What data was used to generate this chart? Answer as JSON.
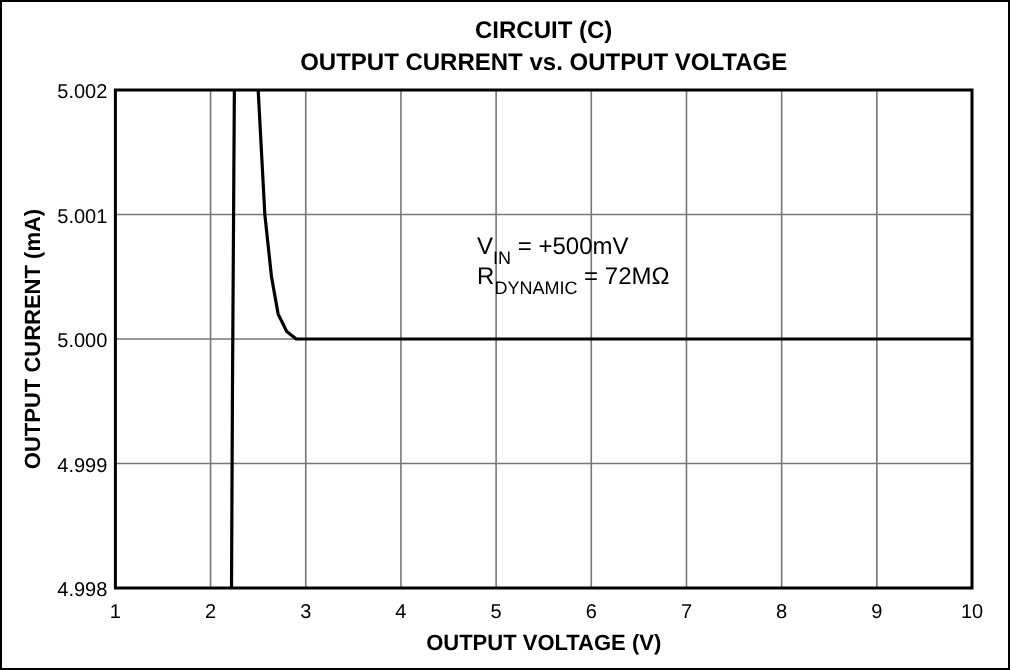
{
  "chart_data": {
    "type": "line",
    "title": "CIRCUIT (C)",
    "subtitle": "OUTPUT CURRENT vs. OUTPUT VOLTAGE",
    "xlabel": "OUTPUT VOLTAGE (V)",
    "ylabel": "OUTPUT CURRENT (mA)",
    "series": [
      {
        "color": "#000000",
        "x": [
          2.22,
          2.23,
          2.25
        ],
        "values": [
          4.998,
          4.9996,
          5.002
        ]
      },
      {
        "color": "#000000",
        "x": [
          2.5,
          2.57,
          2.64,
          2.71,
          2.8,
          2.9,
          3.0,
          4.0,
          10
        ],
        "values": [
          5.002,
          5.001,
          5.0005,
          5.0002,
          5.00006,
          5.0,
          5.0,
          5.0,
          5.0
        ]
      }
    ],
    "xlim": [
      1,
      10
    ],
    "xticks": [
      1,
      2,
      3,
      4,
      5,
      6,
      7,
      8,
      9,
      10
    ],
    "ylim": [
      4.998,
      5.002
    ],
    "yticks": [
      4.998,
      4.999,
      "5.000",
      5.001,
      5.002
    ],
    "grid": true,
    "marker": "none",
    "line_style": "solid",
    "annotations": [
      "V$_{IN}$ = +500mV",
      "R$_{DYNAMIC}$ = 72MΩ"
    ]
  }
}
